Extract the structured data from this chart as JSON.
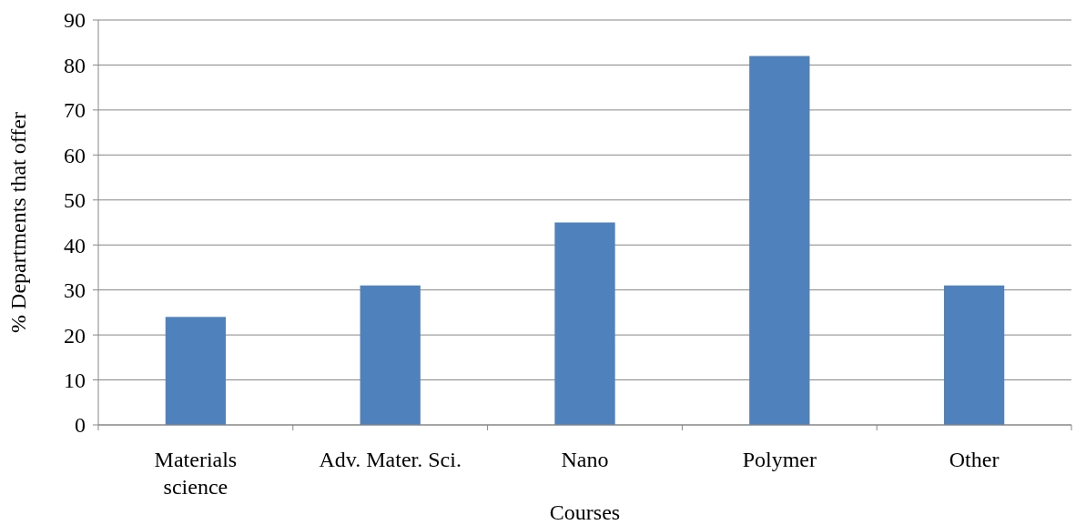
{
  "chart_data": {
    "type": "bar",
    "xlabel": "Courses",
    "ylabel": "% Departments that offer",
    "categories": [
      "Materials\nscience",
      "Adv. Mater. Sci.",
      "Nano",
      "Polymer",
      "Other"
    ],
    "values": [
      24,
      31,
      45,
      82,
      31
    ],
    "color": "#4f81bd",
    "ylim": [
      0,
      90
    ],
    "yticks": [
      0,
      10,
      20,
      30,
      40,
      50,
      60,
      70,
      80,
      90
    ],
    "grid": "y"
  }
}
